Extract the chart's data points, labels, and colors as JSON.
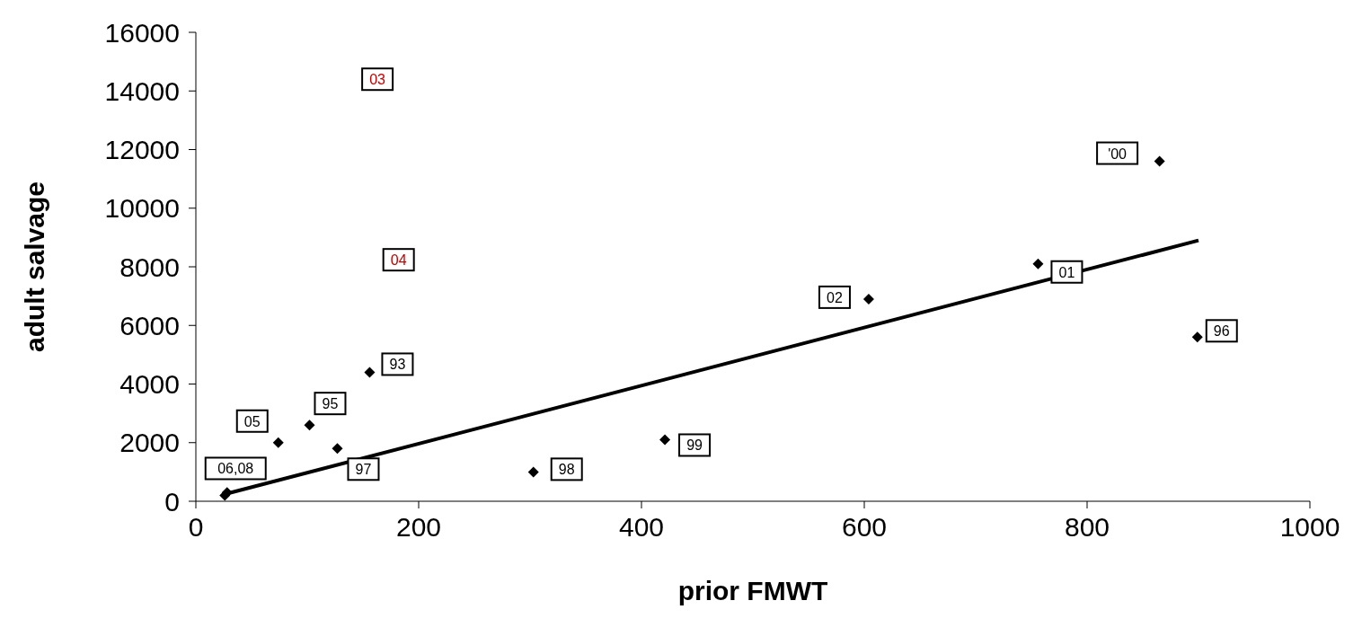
{
  "chart_data": {
    "type": "scatter",
    "xlabel": "prior FMWT",
    "ylabel": "adult salvage",
    "xlim": [
      0,
      1000
    ],
    "xticks": [
      0,
      200,
      400,
      600,
      800,
      1000
    ],
    "ylim": [
      0,
      16000
    ],
    "yticks": [
      0,
      2000,
      4000,
      6000,
      8000,
      10000,
      12000,
      14000,
      16000
    ],
    "grid": false,
    "legend": false,
    "marker": "diamond",
    "series": [
      {
        "type": "scatter",
        "color": "#000000",
        "x": [
          26,
          28,
          74,
          102,
          127,
          156,
          303,
          421,
          604,
          756,
          865,
          899
        ],
        "values": [
          200,
          300,
          2000,
          2600,
          1800,
          4400,
          1000,
          2100,
          6900,
          8100,
          11600,
          5600
        ]
      },
      {
        "type": "line",
        "color": "#000000",
        "line_style": "solid",
        "marker": "none",
        "x": [
          27,
          900
        ],
        "values": [
          250,
          8900
        ]
      }
    ],
    "annotations": [
      {
        "text": "06,08",
        "x": 26,
        "y": 200
      },
      {
        "text": "05",
        "x": 74,
        "y": 2000
      },
      {
        "text": "95",
        "x": 102,
        "y": 2600
      },
      {
        "text": "97",
        "x": 127,
        "y": 1800
      },
      {
        "text": "93",
        "x": 156,
        "y": 4400
      },
      {
        "text": "98",
        "x": 303,
        "y": 1000
      },
      {
        "text": "99",
        "x": 421,
        "y": 2100
      },
      {
        "text": "02",
        "x": 604,
        "y": 6900
      },
      {
        "text": "01",
        "x": 756,
        "y": 8100
      },
      {
        "text": "'00",
        "x": 865,
        "y": 11600
      },
      {
        "text": "96",
        "x": 899,
        "y": 5600
      },
      "03",
      "04"
    ]
  }
}
